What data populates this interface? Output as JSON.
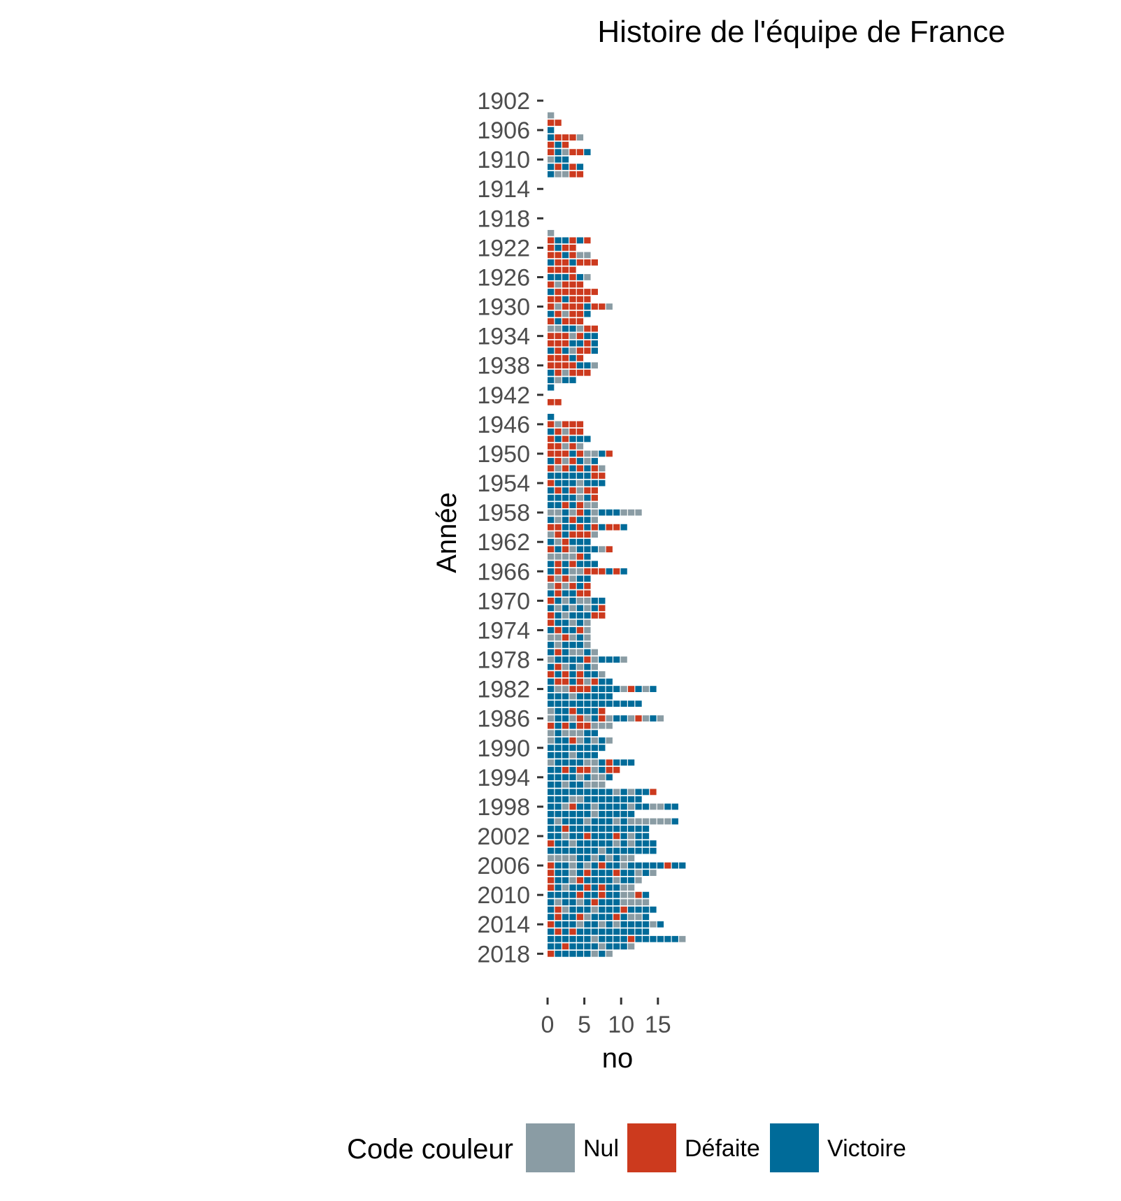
{
  "chart_data": {
    "type": "waffle",
    "title": "Histoire de l'équipe de France",
    "xlabel": "no",
    "ylabel": "Année",
    "xlim": [
      0,
      19
    ],
    "x_ticks": [
      "0",
      "5",
      "10",
      "15"
    ],
    "y_ticks": [
      "1902",
      "1906",
      "1910",
      "1914",
      "1918",
      "1922",
      "1926",
      "1930",
      "1934",
      "1938",
      "1942",
      "1946",
      "1950",
      "1954",
      "1958",
      "1962",
      "1966",
      "1970",
      "1974",
      "1978",
      "1982",
      "1986",
      "1990",
      "1994",
      "1998",
      "2002",
      "2006",
      "2010",
      "2014",
      "2018"
    ],
    "year_range": [
      1902,
      2018
    ],
    "grid": false,
    "legend": {
      "title": "Code couleur",
      "position": "bottom",
      "entries": [
        {
          "key": "N",
          "label": "Nul",
          "color": "#8a9ca4"
        },
        {
          "key": "D",
          "label": "Défaite",
          "color": "#cc3a1e"
        },
        {
          "key": "V",
          "label": "Victoire",
          "color": "#006b99"
        }
      ]
    },
    "matches_by_year": [
      {
        "year": 1904,
        "results": "N"
      },
      {
        "year": 1905,
        "results": "DD"
      },
      {
        "year": 1906,
        "results": "V"
      },
      {
        "year": 1907,
        "results": "VDDDN"
      },
      {
        "year": 1908,
        "results": "DVD"
      },
      {
        "year": 1909,
        "results": "DVNDDV"
      },
      {
        "year": 1910,
        "results": "NVV"
      },
      {
        "year": 1911,
        "results": "VDVDV"
      },
      {
        "year": 1912,
        "results": "VNNDD"
      },
      {
        "year": 1920,
        "results": "N"
      },
      {
        "year": 1921,
        "results": "DVVDVD"
      },
      {
        "year": 1922,
        "results": "DVDD"
      },
      {
        "year": 1923,
        "results": "DDVDNN"
      },
      {
        "year": 1924,
        "results": "VDDVDDD"
      },
      {
        "year": 1925,
        "results": "DDDD"
      },
      {
        "year": 1926,
        "results": "VVVDVN"
      },
      {
        "year": 1927,
        "results": "DNDDD"
      },
      {
        "year": 1928,
        "results": "VDDDDDD"
      },
      {
        "year": 1929,
        "results": "DDVDDD"
      },
      {
        "year": 1930,
        "results": "DNDDDVDDN"
      },
      {
        "year": 1931,
        "results": "VDNDDV"
      },
      {
        "year": 1932,
        "results": "DVDDD"
      },
      {
        "year": 1933,
        "results": "NNVVNDD"
      },
      {
        "year": 1934,
        "results": "DDDNDVV"
      },
      {
        "year": 1935,
        "results": "DDDVVDV"
      },
      {
        "year": 1936,
        "results": "VDVNDDV"
      },
      {
        "year": 1937,
        "results": "DDDVD"
      },
      {
        "year": 1938,
        "results": "DDDDVVN"
      },
      {
        "year": 1939,
        "results": "VDNDDD"
      },
      {
        "year": 1940,
        "results": "VNVV"
      },
      {
        "year": 1941,
        "results": "V"
      },
      {
        "year": 1943,
        "results": "DD"
      },
      {
        "year": 1945,
        "results": "V"
      },
      {
        "year": 1946,
        "results": "DNDDD"
      },
      {
        "year": 1947,
        "results": "VDNDD"
      },
      {
        "year": 1948,
        "results": "DVDVVV"
      },
      {
        "year": 1949,
        "results": "DDNDN"
      },
      {
        "year": 1950,
        "results": "DDDVDNNVD"
      },
      {
        "year": 1951,
        "results": "VDNDVNV"
      },
      {
        "year": 1952,
        "results": "DNDVDVDN"
      },
      {
        "year": 1953,
        "results": "VVVVVVDD"
      },
      {
        "year": 1954,
        "results": "DVVVNVVV"
      },
      {
        "year": 1955,
        "results": "VDVDNDD"
      },
      {
        "year": 1956,
        "results": "VVVVNVD"
      },
      {
        "year": 1957,
        "results": "VVDVDNN"
      },
      {
        "year": 1958,
        "results": "NNVNDVNVVVNNN"
      },
      {
        "year": 1959,
        "results": "VNVDVVN"
      },
      {
        "year": 1960,
        "results": "DDVVDVDVDDV"
      },
      {
        "year": 1961,
        "results": "NDVDDDN"
      },
      {
        "year": 1962,
        "results": "VNDVVV"
      },
      {
        "year": 1963,
        "results": "DVDNVVVND"
      },
      {
        "year": 1964,
        "results": "NNNNDV"
      },
      {
        "year": 1965,
        "results": "VDVDVVV"
      },
      {
        "year": 1966,
        "results": "VDVNNDDDVDV"
      },
      {
        "year": 1967,
        "results": "DNDNVV"
      },
      {
        "year": 1968,
        "results": "NDNDVD"
      },
      {
        "year": 1969,
        "results": "VDVVDD"
      },
      {
        "year": 1970,
        "results": "DVNVNNVV"
      },
      {
        "year": 1971,
        "results": "VNVNVNVD"
      },
      {
        "year": 1972,
        "results": "DVNVVVDD"
      },
      {
        "year": 1973,
        "results": "DVVNVN"
      },
      {
        "year": 1974,
        "results": "VDVVDN"
      },
      {
        "year": 1975,
        "results": "NNDNVN"
      },
      {
        "year": 1976,
        "results": "VNVVVN"
      },
      {
        "year": 1977,
        "results": "VDVNNVN"
      },
      {
        "year": 1978,
        "results": "NVVVVDNVVVN"
      },
      {
        "year": 1979,
        "results": "VDNVNVN"
      },
      {
        "year": 1980,
        "results": "DVDVDVVN"
      },
      {
        "year": 1981,
        "results": "VDDVDNDVV"
      },
      {
        "year": 1982,
        "results": "VNNDDDVVVVNDVNV"
      },
      {
        "year": 1983,
        "results": "VVVNVVVVV"
      },
      {
        "year": 1984,
        "results": "VVVVVVVVVVVVV"
      },
      {
        "year": 1985,
        "results": "NVVDVVVD"
      },
      {
        "year": 1986,
        "results": "NVVNDNVDNVVNDNVN"
      },
      {
        "year": 1987,
        "results": "DVDVDDNNN"
      },
      {
        "year": 1988,
        "results": "NVNNNVV"
      },
      {
        "year": 1989,
        "results": "NVVDNVNVN"
      },
      {
        "year": 1990,
        "results": "VVVVVVVV"
      },
      {
        "year": 1991,
        "results": "VVVNVVV"
      },
      {
        "year": 1992,
        "results": "NVVVVNNVDVVV"
      },
      {
        "year": 1993,
        "results": "VVDVDDNVDD"
      },
      {
        "year": 1994,
        "results": "VVVVNVNNV"
      },
      {
        "year": 1995,
        "results": "VVNVVNNN"
      },
      {
        "year": 1996,
        "results": "VVVVVVVVVNVNVVD"
      },
      {
        "year": 1997,
        "results": "VVVNNVVVVVVVV"
      },
      {
        "year": 1998,
        "results": "VVNDVVNVVVVNVVNNVV"
      },
      {
        "year": 1999,
        "results": "VVVVVVNVVVVV"
      },
      {
        "year": 2000,
        "results": "VNVVVNVVVNVNNNNNNV"
      },
      {
        "year": 2001,
        "results": "VVDVVVVVVVVVVV"
      },
      {
        "year": 2002,
        "results": "VVNVVDVVVDVNVV"
      },
      {
        "year": 2003,
        "results": "DVVNVVVVVNVNVVV"
      },
      {
        "year": 2004,
        "results": "VVVVVVVNVVVVVVV"
      },
      {
        "year": 2005,
        "results": "NNNNVVNVNVNN"
      },
      {
        "year": 2006,
        "results": "DVVNVNVDVVNVVVVVDVV"
      },
      {
        "year": 2007,
        "results": "DVVNVDVVVDVVNVN"
      },
      {
        "year": 2008,
        "results": "DVVNDVVVVNVVN"
      },
      {
        "year": 2009,
        "results": "DVNVVDVDVVNN"
      },
      {
        "year": 2010,
        "results": "VVVVDVVDVVNNDV"
      },
      {
        "year": 2011,
        "results": "VNVVNVDVVVNNNN"
      },
      {
        "year": 2012,
        "results": "VDNVVVNVVVDVVVV"
      },
      {
        "year": 2013,
        "results": "VDVVDNVVVDVNNV"
      },
      {
        "year": 2014,
        "results": "DVVVNVVNVNVVVVNV"
      },
      {
        "year": 2015,
        "results": "VDVDVVVVVVVVVV"
      },
      {
        "year": 2016,
        "results": "VVVVVVNVVVVDVVVVVVN"
      },
      {
        "year": 2017,
        "results": "VVDVVVVNVVVN"
      },
      {
        "year": 2018,
        "results": "DVVVVVNVN"
      }
    ]
  }
}
